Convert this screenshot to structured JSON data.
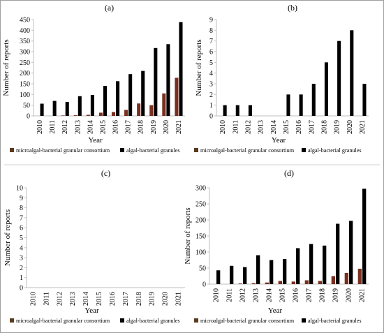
{
  "chart_data": [
    {
      "panel_label": "(a)",
      "type": "bar",
      "categories": [
        "2010",
        "2011",
        "2012",
        "2013",
        "2014",
        "2015",
        "2016",
        "2017",
        "2018",
        "2019",
        "2020",
        "2021"
      ],
      "series": [
        {
          "name": "microalgal-bacterial granular consortium",
          "values": [
            0,
            0,
            2,
            3,
            5,
            15,
            18,
            28,
            58,
            50,
            105,
            178
          ]
        },
        {
          "name": "algal-bacterial granules",
          "values": [
            57,
            70,
            65,
            92,
            98,
            140,
            162,
            195,
            210,
            317,
            335,
            438
          ]
        }
      ],
      "xlabel": "Year",
      "ylabel": "Number of reports",
      "ylim": [
        0,
        450
      ],
      "yticks": [
        0,
        50,
        100,
        150,
        200,
        250,
        300,
        350,
        400,
        450
      ],
      "legend_position": "bottom"
    },
    {
      "panel_label": "(b)",
      "type": "bar",
      "categories": [
        "2010",
        "2011",
        "2012",
        "2013",
        "2014",
        "2015",
        "2016",
        "2017",
        "2018",
        "2019",
        "2020",
        "2021"
      ],
      "series": [
        {
          "name": "microalgal-bacterial granular consortium",
          "values": [
            0,
            0,
            0,
            0,
            0,
            0,
            0,
            0,
            0,
            0,
            0,
            0
          ]
        },
        {
          "name": "algal-bacterial granules",
          "values": [
            1,
            1,
            1,
            0,
            0,
            2,
            2,
            3,
            5,
            7,
            8,
            3
          ]
        }
      ],
      "xlabel": "Year",
      "ylabel": "Number of reports",
      "ylim": [
        0,
        9
      ],
      "yticks": [
        0,
        1,
        2,
        3,
        4,
        5,
        6,
        7,
        8,
        9
      ],
      "legend_position": "bottom"
    },
    {
      "panel_label": "(c)",
      "type": "bar",
      "categories": [
        "2010",
        "2011",
        "2012",
        "2013",
        "2014",
        "2015",
        "2016",
        "2017",
        "2018",
        "2019",
        "2020",
        "2021"
      ],
      "series": [
        {
          "name": "microalgal-bacterial granular consortium",
          "values": [
            0,
            0,
            0,
            0,
            0,
            0,
            0,
            0,
            0,
            0,
            0,
            0
          ]
        },
        {
          "name": "algal-bacterial granules",
          "values": [
            0,
            0,
            0,
            0,
            0,
            0,
            0,
            0,
            0,
            0,
            0,
            0
          ]
        }
      ],
      "xlabel": "Year",
      "ylabel": "Number of reports",
      "ylim": [
        0,
        10
      ],
      "yticks": [
        0,
        1,
        2,
        3,
        4,
        5,
        6,
        7,
        8,
        9,
        10
      ],
      "legend_position": "bottom"
    },
    {
      "panel_label": "(d)",
      "type": "bar",
      "categories": [
        "2010",
        "2011",
        "2012",
        "2013",
        "2014",
        "2015",
        "2016",
        "2017",
        "2018",
        "2019",
        "2020",
        "2021"
      ],
      "series": [
        {
          "name": "microalgal-bacterial granular consortium",
          "values": [
            0,
            0,
            2,
            3,
            5,
            10,
            8,
            12,
            10,
            25,
            35,
            48
          ]
        },
        {
          "name": "algal-bacterial granules",
          "values": [
            43,
            57,
            53,
            90,
            75,
            78,
            112,
            125,
            120,
            188,
            197,
            297
          ]
        }
      ],
      "xlabel": "Year",
      "ylabel": "Number of reports",
      "ylim": [
        0,
        300
      ],
      "yticks": [
        0,
        50,
        100,
        150,
        200,
        250,
        300
      ],
      "legend_position": "bottom"
    }
  ],
  "colors": {
    "series": [
      "#7b2f1f",
      "#000000"
    ],
    "legend_swatch": [
      "#5a3a1e",
      "#000000"
    ],
    "border": "#9e9e9e",
    "axis": "#bfbfbf"
  }
}
